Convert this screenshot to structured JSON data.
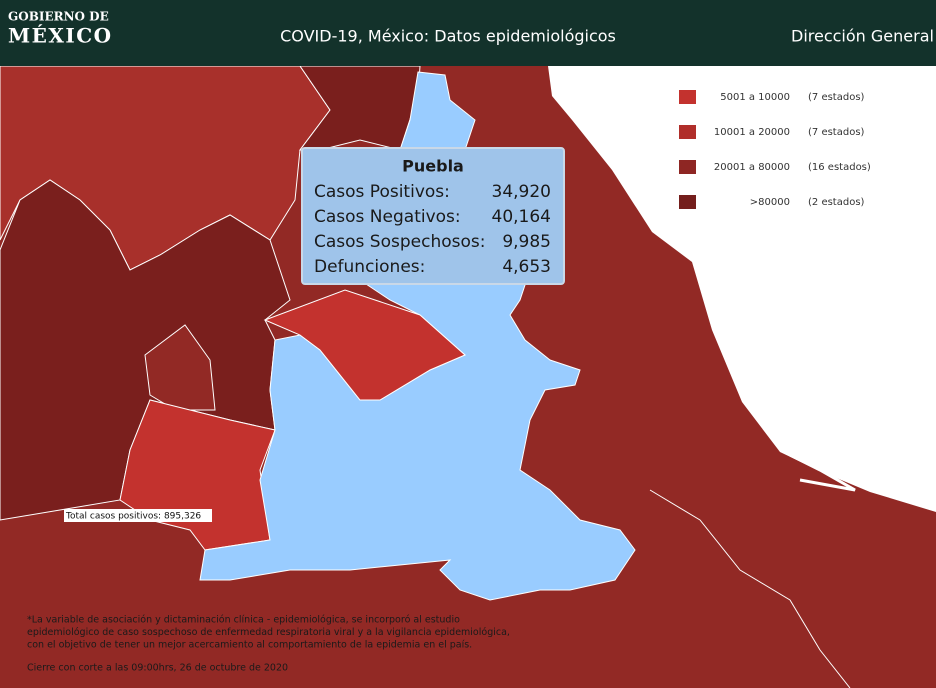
{
  "header": {
    "logo_top": "GOBIERNO DE",
    "logo_bottom": "MÉXICO",
    "title": "COVID-19, México: Datos epidemiológicos",
    "right": "Dirección General"
  },
  "legend": [
    {
      "range": "5001 a  10000",
      "count": "(7 estados)",
      "color": "#c3322e"
    },
    {
      "range": "10001 a  20000",
      "count": "(7 estados)",
      "color": "#b02e2a"
    },
    {
      "range": "20001 a  80000",
      "count": "(16 estados)",
      "color": "#8e2623"
    },
    {
      "range": ">80000",
      "count": "(2 estados)",
      "color": "#741e1c"
    }
  ],
  "tooltip": {
    "title": "Puebla",
    "rows": [
      {
        "label": "Casos Positivos:",
        "value": "34,920"
      },
      {
        "label": "Casos Negativos:",
        "value": "40,164"
      },
      {
        "label": "Casos Sospechosos:",
        "value": "9,985"
      },
      {
        "label": "Defunciones:",
        "value": "4,653"
      }
    ]
  },
  "total": "Total casos positivos: 895,326",
  "footnote": [
    "*La variable de asociación y dictaminación clínica - epidemiológica, se incorporó al estudio",
    "epidemiológico de caso sospechoso de enfermedad respiratoria viral y a la vigilancia epidemiológica,",
    "con el objetivo de tener un mejor acercamiento al comportamiento de la epidemia en el país."
  ],
  "cutoff": "Cierre con corte a las 09:00hrs, 26 de octubre de 2020"
}
